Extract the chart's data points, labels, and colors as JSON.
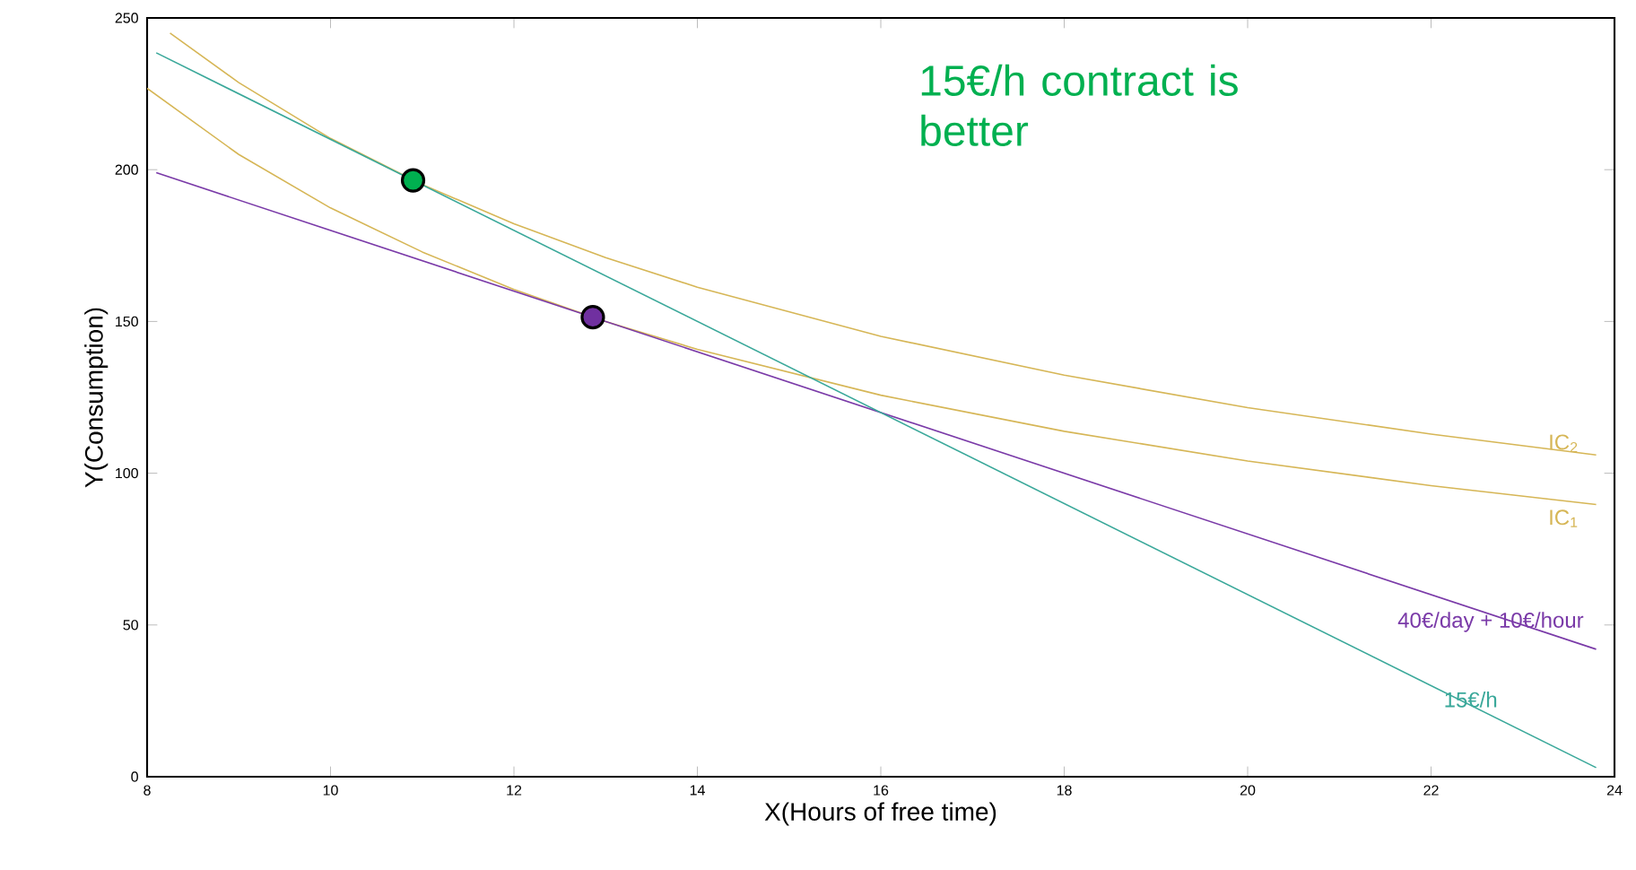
{
  "chart_data": {
    "type": "line",
    "xlabel": "X(Hours of free time)",
    "ylabel": "Y(Consumption)",
    "xlim": [
      8,
      24
    ],
    "ylim": [
      0,
      250
    ],
    "xticks": [
      8,
      10,
      12,
      14,
      16,
      18,
      20,
      22,
      24
    ],
    "yticks": [
      0,
      50,
      100,
      150,
      200,
      250
    ],
    "grid": false,
    "annotations": [
      "15€/h contract is better"
    ],
    "series": [
      {
        "name": "IC$_{2}$",
        "color": "#d6b656",
        "x": [
          8.25,
          9,
          10,
          11,
          12,
          13,
          14,
          16,
          18,
          20,
          22,
          23.8
        ],
        "values": [
          245,
          228.7,
          210.3,
          195.1,
          182.2,
          171,
          161.3,
          145.1,
          132.3,
          121.6,
          112.9,
          106
        ]
      },
      {
        "name": "IC$_{1}$",
        "color": "#d6b656",
        "x": [
          8,
          9,
          10,
          11,
          12,
          13,
          14,
          16,
          18,
          20,
          22,
          23.8
        ],
        "values": [
          226.8,
          205,
          187.4,
          172.9,
          160.5,
          150,
          140.8,
          125.7,
          113.8,
          104,
          95.9,
          89.7
        ]
      },
      {
        "name": "40€/day + 10€/hour",
        "color": "#7a3aa8",
        "x": [
          8.1,
          23.8
        ],
        "values": [
          199,
          42
        ]
      },
      {
        "name": "15€/h",
        "color": "#3aa89a",
        "x": [
          8.1,
          23.8
        ],
        "values": [
          238.5,
          3
        ]
      },
      {
        "type": "scatter",
        "color": "#00b050",
        "x": [
          10.9
        ],
        "values": [
          196.5
        ]
      },
      {
        "type": "scatter",
        "color": "#7030a0",
        "x": [
          12.86
        ],
        "values": [
          151.4
        ]
      }
    ]
  }
}
